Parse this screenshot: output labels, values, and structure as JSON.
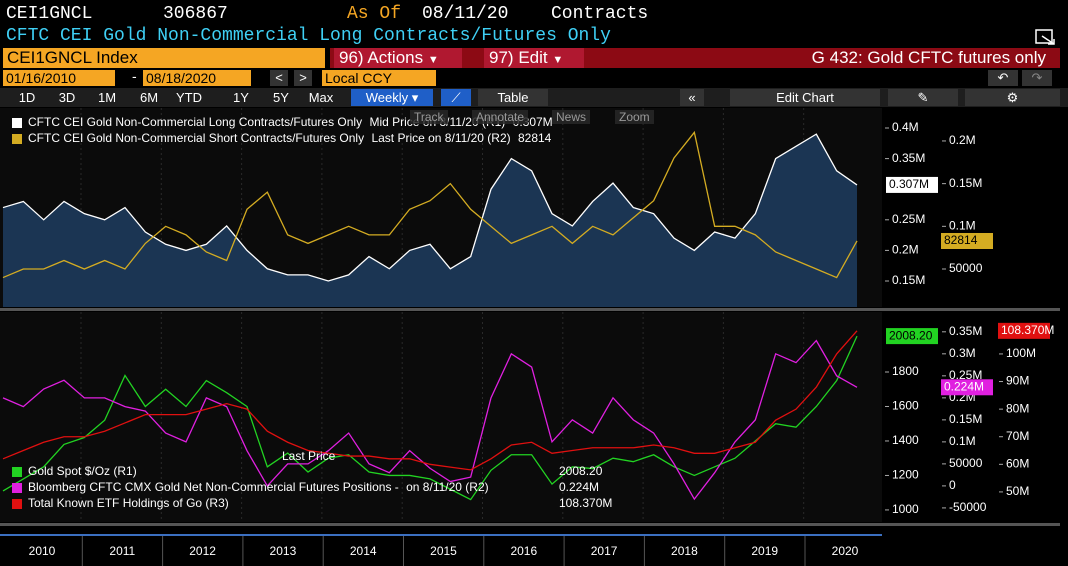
{
  "header": {
    "ticker": "CEI1GNCL",
    "number": "306867",
    "as_of_label": "As Of",
    "as_of": "08/11/20",
    "units": "Contracts",
    "description": "CFTC CEI Gold Non-Commercial Long Contracts/Futures Only"
  },
  "toolbar": {
    "security": "CEI1GNCL Index",
    "actions_code": "96)",
    "actions": "Actions",
    "edit_code": "97)",
    "edit": "Edit",
    "page_title": "G 432: Gold CFTC futures only",
    "start_date": "01/16/2010",
    "end_date": "08/18/2020",
    "currency": "Local CCY",
    "periods": [
      "1D",
      "3D",
      "1M",
      "6M",
      "YTD",
      "1Y",
      "5Y",
      "Max"
    ],
    "frequency": "Weekly",
    "table": "Table",
    "edit_chart": "Edit Chart",
    "chart_tools": [
      "Track",
      "Annotate",
      "News",
      "Zoom"
    ]
  },
  "chart_data": [
    {
      "type": "line",
      "ylim": [
        107500,
        432700
      ],
      "y2lim": [
        5500,
        238600
      ],
      "yticks": [
        {
          "value": 150000,
          "label": "0.15M"
        },
        {
          "value": 200000,
          "label": "0.2M"
        },
        {
          "value": 250000,
          "label": "0.25M"
        },
        {
          "value": 350000,
          "label": "0.35M"
        },
        {
          "value": 400000,
          "label": "0.4M"
        }
      ],
      "y2ticks": [
        50000,
        {
          "value": 100000,
          "label": "0.1M"
        },
        {
          "value": 150000,
          "label": "0.15M"
        },
        {
          "value": 200000,
          "label": "0.2M"
        }
      ],
      "series": [
        {
          "name": "CFTC CEI Gold Non-Commercial Long Contracts/Futures Only",
          "note": "Mid Price on 8/11/20 (R1)",
          "last_label": "0.307M",
          "color": "#ffffff",
          "fill": "#1b3553",
          "axis": "y",
          "values": [
            270000,
            280000,
            250000,
            280000,
            260000,
            250000,
            270000,
            230000,
            210000,
            200000,
            210000,
            240000,
            200000,
            170000,
            160000,
            160000,
            150000,
            160000,
            190000,
            170000,
            200000,
            210000,
            170000,
            190000,
            300000,
            350000,
            330000,
            260000,
            240000,
            280000,
            310000,
            270000,
            260000,
            220000,
            200000,
            230000,
            220000,
            260000,
            350000,
            370000,
            390000,
            330000,
            307000
          ]
        },
        {
          "name": "CFTC CEI Gold Non-Commercial Short Contracts/Futures Only",
          "note": "Last Price on 8/11/20 (R2)",
          "last_label": "82814",
          "color": "#d4ac22",
          "axis": "y2",
          "values": [
            40000,
            50000,
            50000,
            60000,
            50000,
            60000,
            50000,
            80000,
            100000,
            90000,
            70000,
            60000,
            120000,
            140000,
            90000,
            80000,
            90000,
            100000,
            90000,
            90000,
            120000,
            130000,
            150000,
            120000,
            100000,
            80000,
            90000,
            100000,
            80000,
            100000,
            90000,
            110000,
            130000,
            180000,
            210000,
            100000,
            100000,
            90000,
            70000,
            60000,
            50000,
            40000,
            82814
          ]
        }
      ]
    },
    {
      "type": "line",
      "ylim": [
        930,
        2148
      ],
      "y2lim": [
        -82000,
        395000
      ],
      "y3lim": [
        39100000,
        115200000
      ],
      "yticks": [
        1000,
        1200,
        1400,
        1600,
        1800
      ],
      "y2ticks": [
        -50000,
        0,
        50000,
        {
          "value": 100000,
          "label": "0.1M"
        },
        {
          "value": 150000,
          "label": "0.15M"
        },
        {
          "value": 200000,
          "label": "0.2M"
        },
        {
          "value": 250000,
          "label": "0.25M"
        },
        {
          "value": 300000,
          "label": "0.3M"
        },
        {
          "value": 350000,
          "label": "0.35M"
        }
      ],
      "y3ticks": [
        {
          "value": 50000000,
          "label": "50M"
        },
        {
          "value": 60000000,
          "label": "60M"
        },
        {
          "value": 70000000,
          "label": "70M"
        },
        {
          "value": 80000000,
          "label": "80M"
        },
        {
          "value": 90000000,
          "label": "90M"
        },
        {
          "value": 100000000,
          "label": "100M"
        }
      ],
      "annotation": "Last Price",
      "xtick_labels": [
        "2010",
        "2011",
        "2012",
        "2013",
        "2014",
        "2015",
        "2016",
        "2017",
        "2018",
        "2019",
        "2020"
      ],
      "series": [
        {
          "name": "Gold Spot $/Oz (R1)",
          "last_label": "2008.20",
          "color": "#22d322",
          "axis": "y",
          "values": [
            1110,
            1180,
            1250,
            1380,
            1420,
            1520,
            1780,
            1600,
            1700,
            1600,
            1750,
            1680,
            1600,
            1250,
            1330,
            1220,
            1300,
            1320,
            1220,
            1200,
            1200,
            1180,
            1120,
            1060,
            1230,
            1320,
            1320,
            1150,
            1250,
            1240,
            1300,
            1280,
            1320,
            1250,
            1200,
            1250,
            1300,
            1400,
            1500,
            1480,
            1600,
            1750,
            2008.2
          ]
        },
        {
          "name": "Bloomberg CFTC CMX Gold Net Non-Commercial Futures Positions -",
          "note": "on 8/11/20 (R2)",
          "last_label": "0.224M",
          "color": "#e020e0",
          "axis": "y2",
          "values": [
            200000,
            180000,
            220000,
            240000,
            200000,
            200000,
            180000,
            170000,
            120000,
            100000,
            200000,
            180000,
            80000,
            0,
            50000,
            50000,
            80000,
            120000,
            50000,
            30000,
            80000,
            40000,
            10000,
            20000,
            200000,
            300000,
            270000,
            100000,
            150000,
            120000,
            200000,
            150000,
            120000,
            50000,
            -30000,
            30000,
            100000,
            150000,
            300000,
            280000,
            330000,
            250000,
            224000
          ]
        },
        {
          "name": "Total Known ETF Holdings of Go (R3)",
          "last_label": "108.370M",
          "color": "#e01010",
          "axis": "y3",
          "values": [
            62000000,
            65000000,
            68000000,
            70000000,
            70000000,
            72000000,
            75000000,
            78000000,
            78000000,
            78000000,
            80000000,
            82000000,
            80000000,
            72000000,
            68000000,
            65000000,
            64000000,
            63000000,
            63000000,
            62000000,
            62000000,
            60000000,
            59000000,
            58000000,
            62000000,
            67000000,
            68000000,
            64000000,
            65000000,
            66000000,
            66000000,
            66000000,
            67000000,
            66000000,
            64000000,
            64000000,
            66000000,
            68000000,
            76000000,
            80000000,
            88000000,
            100000000,
            108370000
          ]
        }
      ]
    }
  ]
}
